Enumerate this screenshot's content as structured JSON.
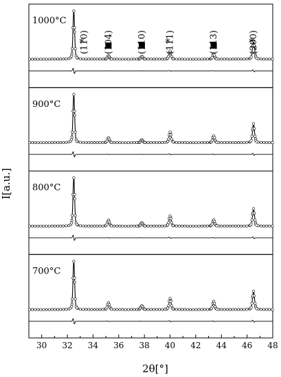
{
  "chart_data": {
    "type": "line",
    "xlabel": "2θ[°]",
    "ylabel": "I[a.u.]",
    "xlim": [
      29,
      48
    ],
    "x_ticks": [
      30,
      32,
      34,
      36,
      38,
      40,
      42,
      44,
      46,
      48
    ],
    "grid": false,
    "legend": "none",
    "panels": [
      {
        "label": "1000°C",
        "peaks": [
          {
            "two_theta": 32.5,
            "height": 1.0
          },
          {
            "two_theta": 35.2,
            "height": 0.07
          },
          {
            "two_theta": 37.8,
            "height": 0.06
          },
          {
            "two_theta": 40.0,
            "height": 0.17
          },
          {
            "two_theta": 43.4,
            "height": 0.11
          },
          {
            "two_theta": 46.5,
            "height": 0.38
          }
        ]
      },
      {
        "label": "900°C",
        "peaks": [
          {
            "two_theta": 32.5,
            "height": 1.0
          },
          {
            "two_theta": 35.2,
            "height": 0.1
          },
          {
            "two_theta": 37.8,
            "height": 0.06
          },
          {
            "two_theta": 40.0,
            "height": 0.22
          },
          {
            "two_theta": 43.4,
            "height": 0.14
          },
          {
            "two_theta": 46.5,
            "height": 0.39
          }
        ]
      },
      {
        "label": "800°C",
        "peaks": [
          {
            "two_theta": 32.5,
            "height": 1.0
          },
          {
            "two_theta": 35.2,
            "height": 0.12
          },
          {
            "two_theta": 37.8,
            "height": 0.07
          },
          {
            "two_theta": 40.0,
            "height": 0.21
          },
          {
            "two_theta": 43.4,
            "height": 0.13
          },
          {
            "two_theta": 46.5,
            "height": 0.36
          }
        ]
      },
      {
        "label": "700°C",
        "peaks": [
          {
            "two_theta": 32.5,
            "height": 1.0
          },
          {
            "two_theta": 35.2,
            "height": 0.14
          },
          {
            "two_theta": 37.8,
            "height": 0.08
          },
          {
            "two_theta": 40.0,
            "height": 0.23
          },
          {
            "two_theta": 43.4,
            "height": 0.17
          },
          {
            "two_theta": 46.5,
            "height": 0.38
          }
        ]
      }
    ],
    "annotations": [
      {
        "text": "(110)",
        "x": 33.3,
        "marker": "*"
      },
      {
        "text": "(104)",
        "x": 35.2,
        "marker": "square"
      },
      {
        "text": "(110)",
        "x": 37.8,
        "marker": "square"
      },
      {
        "text": "(111)",
        "x": 40.0,
        "marker": "*"
      },
      {
        "text": "(113)",
        "x": 43.4,
        "marker": "square"
      },
      {
        "text": "(200)",
        "x": 46.5,
        "marker": "*"
      }
    ]
  }
}
